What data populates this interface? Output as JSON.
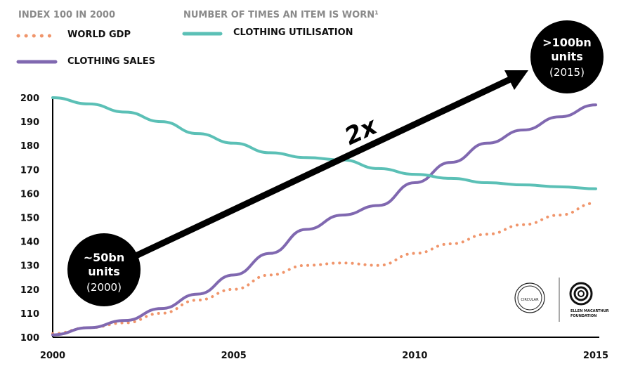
{
  "chart_data": {
    "type": "line",
    "x": [
      2000,
      2001,
      2002,
      2003,
      2004,
      2005,
      2006,
      2007,
      2008,
      2009,
      2010,
      2011,
      2012,
      2013,
      2014,
      2015
    ],
    "xticks": [
      "2000",
      "2005",
      "2010",
      "2015"
    ],
    "yticks": [
      "100",
      "110",
      "120",
      "130",
      "140",
      "150",
      "160",
      "170",
      "180",
      "190",
      "200"
    ],
    "ylim": [
      100,
      200
    ],
    "xlim": [
      2000,
      2015
    ],
    "grid": false,
    "legend_groups": [
      {
        "heading": "INDEX 100 IN 2000",
        "entries": [
          "WORLD GDP",
          "CLOTHING SALES"
        ]
      },
      {
        "heading": "NUMBER OF TIMES AN ITEM IS WORN¹",
        "entries": [
          "CLOTHING UTILISATION"
        ]
      }
    ],
    "series": [
      {
        "name": "WORLD GDP",
        "color": "#f0956b",
        "style": "dotted",
        "values": [
          101.5,
          104,
          106,
          110,
          115.5,
          120,
          126,
          130,
          131,
          130,
          135,
          139,
          143,
          147,
          151,
          156
        ]
      },
      {
        "name": "CLOTHING SALES",
        "color": "#8068b0",
        "style": "solid",
        "values": [
          101,
          104,
          107,
          112,
          118,
          126,
          135,
          145,
          151,
          155,
          164.5,
          173,
          181,
          186.5,
          192,
          197
        ]
      },
      {
        "name": "CLOTHING UTILISATION",
        "color": "#5bc0b6",
        "style": "solid",
        "values": [
          200,
          197.4,
          194,
          190,
          185,
          181,
          177,
          175,
          174,
          170.4,
          168,
          166.3,
          164.5,
          163.6,
          162.8,
          162
        ]
      }
    ],
    "annotations": {
      "start": {
        "line1": "~50bn",
        "line2": "units",
        "line3": "(2000)"
      },
      "end": {
        "line1": ">100bn",
        "line2": "units",
        "line3": "(2015)"
      },
      "arrow_label": "2x"
    }
  },
  "logos": {
    "left": "CIRCULAR FIBRES INITIATIVE",
    "right": "ELLEN MACARTHUR FOUNDATION"
  }
}
